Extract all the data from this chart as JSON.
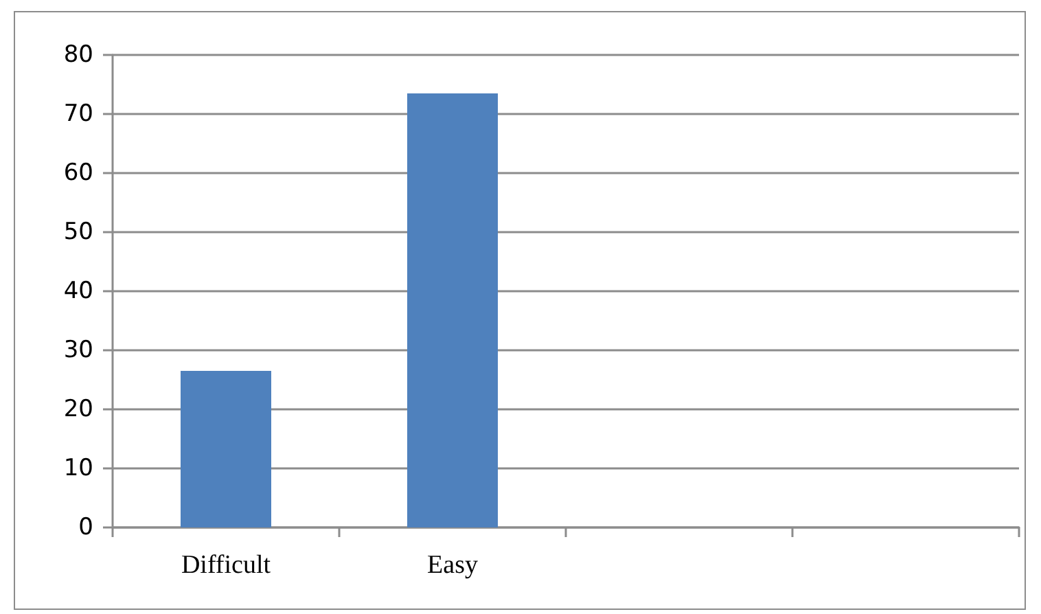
{
  "chart_data": {
    "type": "bar",
    "categories": [
      "Difficult",
      "Easy",
      null,
      null
    ],
    "values": [
      26.5,
      73.5,
      null,
      null
    ],
    "color": "#4f81bd",
    "ylim": [
      0,
      80
    ],
    "yticks": [
      0,
      10,
      20,
      30,
      40,
      50,
      60,
      70,
      80
    ],
    "grid": "y"
  }
}
